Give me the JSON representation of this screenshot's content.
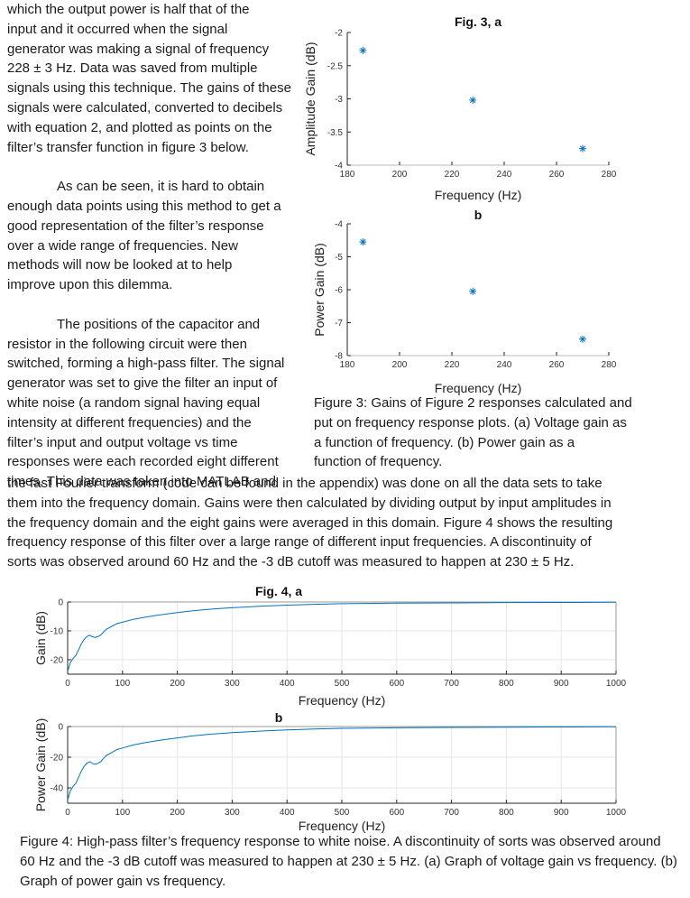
{
  "text": {
    "left_column": [
      "which the output power is half that of the",
      "input and it occurred when the signal",
      "generator was making a signal of frequency",
      "228 ± 3 Hz. Data was saved from multiple",
      "signals using this technique. The gains of these",
      "signals were calculated, converted to decibels",
      "with equation 2, and plotted as points on the",
      "filter’s transfer function in figure 3 below.",
      "",
      "As can be seen, it is hard to obtain",
      "enough data points using this method to get a",
      "good representation of the filter’s response",
      "over a wide range of frequencies. New",
      "methods will now be looked at to help",
      "improve upon this dilemma.",
      "",
      "The positions of the capacitor and",
      "resistor in the following circuit were then",
      "switched, forming a high-pass filter. The signal",
      "generator was set to give the filter an input of",
      "white noise (a random signal having equal",
      "intensity at different frequencies) and the",
      "filter’s input and output voltage vs time",
      "responses were each recorded eight different",
      "times. This data was taken into MATLAB and"
    ],
    "full_width": [
      "the fast Fourier transform (code can be found in the appendix) was done on all the data sets to take",
      "them into the frequency domain. Gains were then calculated by dividing output by input amplitudes in",
      "the frequency domain and the eight gains were averaged in this domain. Figure 4 shows the resulting",
      "frequency response of this filter over a large range of different input frequencies. A discontinuity of",
      "sorts was observed around 60 Hz and the -3 dB cutoff was measured to happen at 230 ± 5 Hz."
    ],
    "fig3_caption": [
      "Figure 3: Gains of Figure 2 responses calculated and",
      "put on frequency response plots. (a) Voltage gain as",
      "a function of frequency. (b) Power gain as a",
      "function of frequency."
    ],
    "fig4_caption": [
      "Figure 4: High-pass filter’s frequency response to white noise. A discontinuity of sorts was observed around",
      "60 Hz and the -3 dB cutoff was measured to happen at 230 ± 5 Hz. (a) Graph of voltage gain vs frequency. (b)",
      "Graph of power gain vs frequency."
    ]
  },
  "colors": {
    "series": "#0072bd",
    "axis": "#262626",
    "grid": "#e6e6e6"
  },
  "chart_data": [
    {
      "id": "fig3a",
      "type": "scatter",
      "title": "Fig. 3, a",
      "xlabel": "Frequency (Hz)",
      "ylabel": "Amplitude Gain (dB)",
      "xlim": [
        180,
        280
      ],
      "ylim": [
        -4,
        -2
      ],
      "xticks": [
        180,
        200,
        220,
        240,
        260,
        280
      ],
      "yticks": [
        -4,
        -3.5,
        -3,
        -2.5,
        -2
      ],
      "x": [
        186,
        228,
        270
      ],
      "y": [
        -2.27,
        -3.02,
        -3.75
      ],
      "marker": "*"
    },
    {
      "id": "fig3b",
      "type": "scatter",
      "title": "b",
      "xlabel": "Frequency (Hz)",
      "ylabel": "Power Gain (dB)",
      "xlim": [
        180,
        280
      ],
      "ylim": [
        -8,
        -4
      ],
      "xticks": [
        180,
        200,
        220,
        240,
        260,
        280
      ],
      "yticks": [
        -8,
        -7,
        -6,
        -5,
        -4
      ],
      "x": [
        186,
        228,
        270
      ],
      "y": [
        -4.55,
        -6.05,
        -7.5
      ],
      "marker": "*"
    },
    {
      "id": "fig4a",
      "type": "line",
      "title": "Fig. 4, a",
      "xlabel": "Frequency (Hz)",
      "ylabel": "Gain (dB)",
      "xlim": [
        0,
        1000
      ],
      "ylim": [
        -25,
        0
      ],
      "xticks": [
        0,
        100,
        200,
        300,
        400,
        500,
        600,
        700,
        800,
        900,
        1000
      ],
      "yticks": [
        -20,
        -10,
        0
      ],
      "x": [
        0,
        5,
        10,
        15,
        20,
        25,
        30,
        35,
        40,
        45,
        50,
        55,
        60,
        65,
        70,
        80,
        90,
        100,
        120,
        140,
        160,
        180,
        200,
        230,
        260,
        300,
        350,
        400,
        450,
        500,
        600,
        700,
        800,
        900,
        1000
      ],
      "y": [
        -24,
        -21,
        -19.5,
        -18.5,
        -16.5,
        -14.5,
        -13,
        -12,
        -11.5,
        -12,
        -12.3,
        -12,
        -11.5,
        -10.5,
        -9.5,
        -8.5,
        -7.5,
        -7,
        -6,
        -5.3,
        -4.7,
        -4.2,
        -3.7,
        -3,
        -2.5,
        -2,
        -1.5,
        -1.1,
        -0.8,
        -0.6,
        -0.4,
        -0.3,
        -0.2,
        -0.15,
        -0.1
      ]
    },
    {
      "id": "fig4b",
      "type": "line",
      "title": "b",
      "xlabel": "Frequency (Hz)",
      "ylabel": "Power Gain (dB)",
      "xlim": [
        0,
        1000
      ],
      "ylim": [
        -50,
        0
      ],
      "xticks": [
        0,
        100,
        200,
        300,
        400,
        500,
        600,
        700,
        800,
        900,
        1000
      ],
      "yticks": [
        -40,
        -20,
        0
      ],
      "x": [
        0,
        5,
        10,
        15,
        20,
        25,
        30,
        35,
        40,
        45,
        50,
        55,
        60,
        65,
        70,
        80,
        90,
        100,
        120,
        140,
        160,
        180,
        200,
        230,
        260,
        300,
        350,
        400,
        450,
        500,
        600,
        700,
        800,
        900,
        1000
      ],
      "y": [
        -48,
        -42,
        -39,
        -37,
        -33,
        -29,
        -26,
        -24,
        -23,
        -24,
        -24.6,
        -24,
        -23,
        -21,
        -19,
        -17,
        -15,
        -14,
        -12,
        -10.6,
        -9.4,
        -8.4,
        -7.4,
        -6,
        -5,
        -4,
        -3,
        -2.2,
        -1.6,
        -1.2,
        -0.8,
        -0.6,
        -0.4,
        -0.3,
        -0.2
      ]
    }
  ]
}
